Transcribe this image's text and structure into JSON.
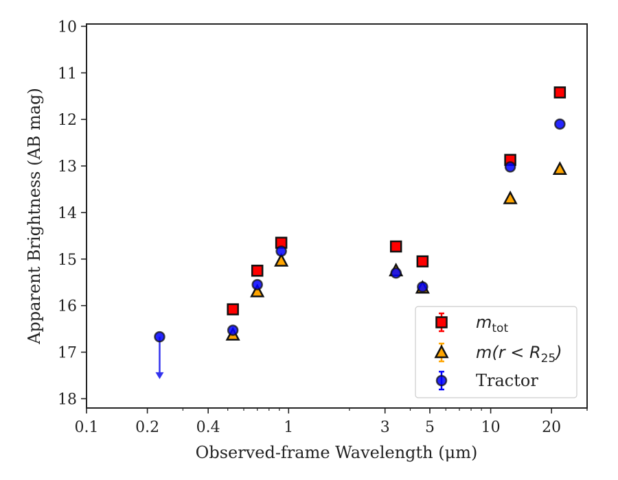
{
  "chart_data": {
    "type": "scatter",
    "title": "",
    "xlabel": "Observed-frame Wavelength (μm)",
    "ylabel": "Apparent Brightness (AB mag)",
    "xscale": "log",
    "xlim": [
      0.1,
      30
    ],
    "ylim": [
      18.2,
      9.95
    ],
    "y_inverted": true,
    "x_ticks": [
      {
        "value": 0.1,
        "label": "0.1"
      },
      {
        "value": 0.2,
        "label": "0.2"
      },
      {
        "value": 0.4,
        "label": "0.4"
      },
      {
        "value": 1,
        "label": "1"
      },
      {
        "value": 3,
        "label": "3"
      },
      {
        "value": 5,
        "label": "5"
      },
      {
        "value": 10,
        "label": "10"
      },
      {
        "value": 20,
        "label": "20"
      }
    ],
    "y_ticks": [
      {
        "value": 10,
        "label": "10"
      },
      {
        "value": 11,
        "label": "11"
      },
      {
        "value": 12,
        "label": "12"
      },
      {
        "value": 13,
        "label": "13"
      },
      {
        "value": 14,
        "label": "14"
      },
      {
        "value": 15,
        "label": "15"
      },
      {
        "value": 16,
        "label": "16"
      },
      {
        "value": 17,
        "label": "17"
      },
      {
        "value": 18,
        "label": "18"
      }
    ],
    "legend_position": "lower-right",
    "series": [
      {
        "name": "m_tot",
        "label_main": "m",
        "label_sub": "tot",
        "marker": "square",
        "color": "#ff0000",
        "x": [
          0.53,
          0.7,
          0.92,
          3.4,
          4.6,
          12.5,
          22
        ],
        "y": [
          16.08,
          15.25,
          14.65,
          14.73,
          15.05,
          12.87,
          11.42
        ]
      },
      {
        "name": "m(r < R_25)",
        "label_main": "m(r < R",
        "label_sub": "25",
        "label_tail": ")",
        "marker": "triangle",
        "color": "#ffa500",
        "x": [
          0.53,
          0.7,
          0.92,
          3.4,
          4.6,
          12.5,
          22
        ],
        "y": [
          16.63,
          15.7,
          15.04,
          15.25,
          15.62,
          13.7,
          13.07
        ]
      },
      {
        "name": "Tractor",
        "marker": "circle",
        "color": "#0000ff",
        "x": [
          0.23,
          0.53,
          0.7,
          0.92,
          3.4,
          4.6,
          12.5,
          22
        ],
        "y": [
          16.67,
          16.53,
          15.55,
          14.83,
          15.3,
          15.6,
          13.02,
          12.1
        ],
        "upper_limit_index": 0,
        "upper_limit_to": 17.55
      }
    ]
  }
}
